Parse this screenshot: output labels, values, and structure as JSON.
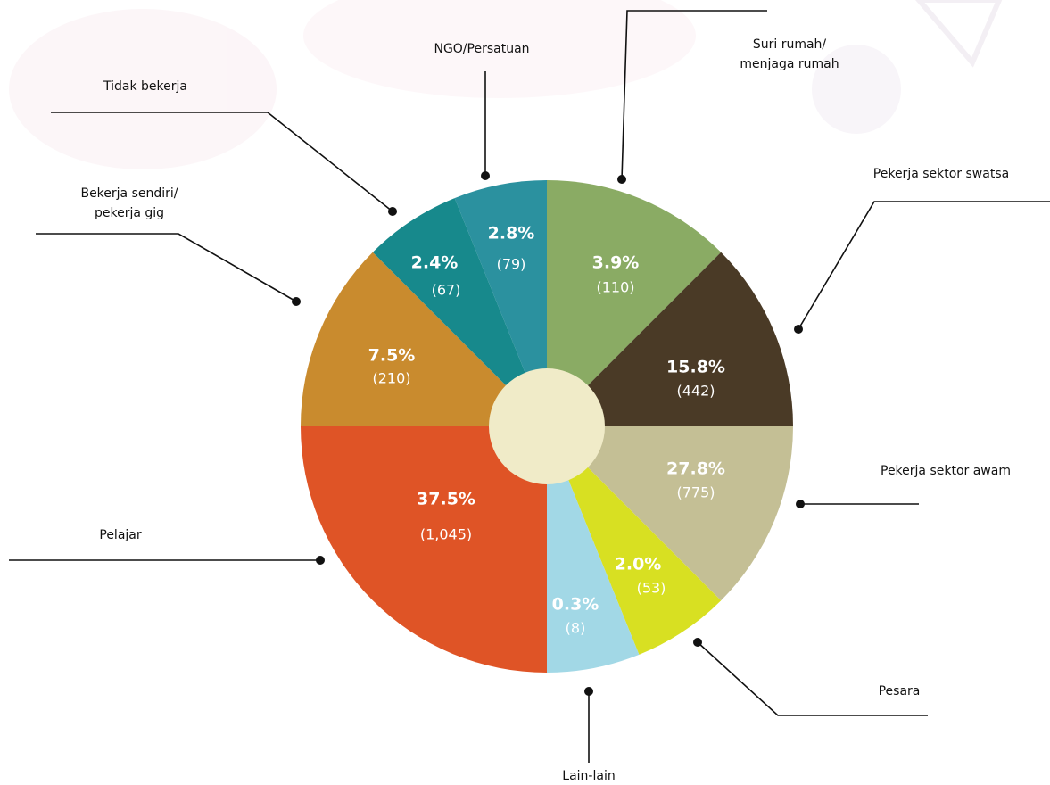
{
  "chart_data": {
    "type": "pie",
    "categories": [
      [
        "Suri rumah/",
        "menjaga rumah"
      ],
      [
        "Pekerja sektor swatsa"
      ],
      [
        "Pekerja sektor awam"
      ],
      [
        "Pesara"
      ],
      [
        "Lain-lain"
      ],
      [
        "Pelajar"
      ],
      [
        "Bekerja sendiri/",
        "pekerja gig"
      ],
      [
        "Tidak bekerja"
      ],
      [
        "NGO/Persatuan"
      ]
    ],
    "values": [
      3.9,
      15.8,
      27.8,
      2.0,
      0.3,
      37.5,
      7.5,
      2.4,
      2.8
    ],
    "value_labels": [
      "3.9%",
      "15.8%",
      "27.8%",
      "2.0%",
      "0.3%",
      "37.5%",
      "7.5%",
      "2.4%",
      "2.8%"
    ],
    "counts": [
      110,
      442,
      775,
      53,
      8,
      1045,
      210,
      67,
      79
    ],
    "count_labels": [
      "(110)",
      "(442)",
      "(775)",
      "(53)",
      "(8)",
      "(1,045)",
      "(210)",
      "(67)",
      "(79)"
    ]
  }
}
